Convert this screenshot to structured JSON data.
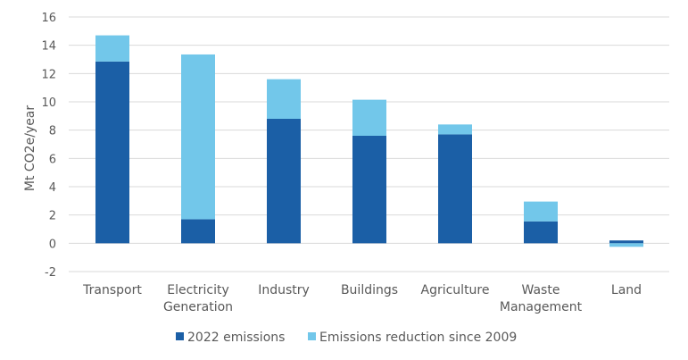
{
  "chart_data": {
    "type": "bar",
    "stacked": true,
    "title": "",
    "xlabel": "",
    "ylabel": "Mt CO2e/year",
    "ylim": [
      -2,
      16
    ],
    "yticks": [
      -2,
      0,
      2,
      4,
      6,
      8,
      10,
      12,
      14,
      16
    ],
    "grid": true,
    "legend_position": "bottom",
    "categories": [
      [
        "Transport"
      ],
      [
        "Electricity",
        "Generation"
      ],
      [
        "Industry"
      ],
      [
        "Buildings"
      ],
      [
        "Agriculture"
      ],
      [
        "Waste",
        "Management"
      ],
      [
        "Land"
      ]
    ],
    "series": [
      {
        "name": "2022 emissions",
        "color": "#1b5fa6",
        "values": [
          12.85,
          1.7,
          8.8,
          7.6,
          7.7,
          1.55,
          0.2
        ]
      },
      {
        "name": "Emissions reduction since 2009",
        "color": "#72c7ea",
        "values": [
          1.85,
          11.65,
          2.8,
          2.55,
          0.7,
          1.4,
          -0.25
        ]
      }
    ]
  }
}
